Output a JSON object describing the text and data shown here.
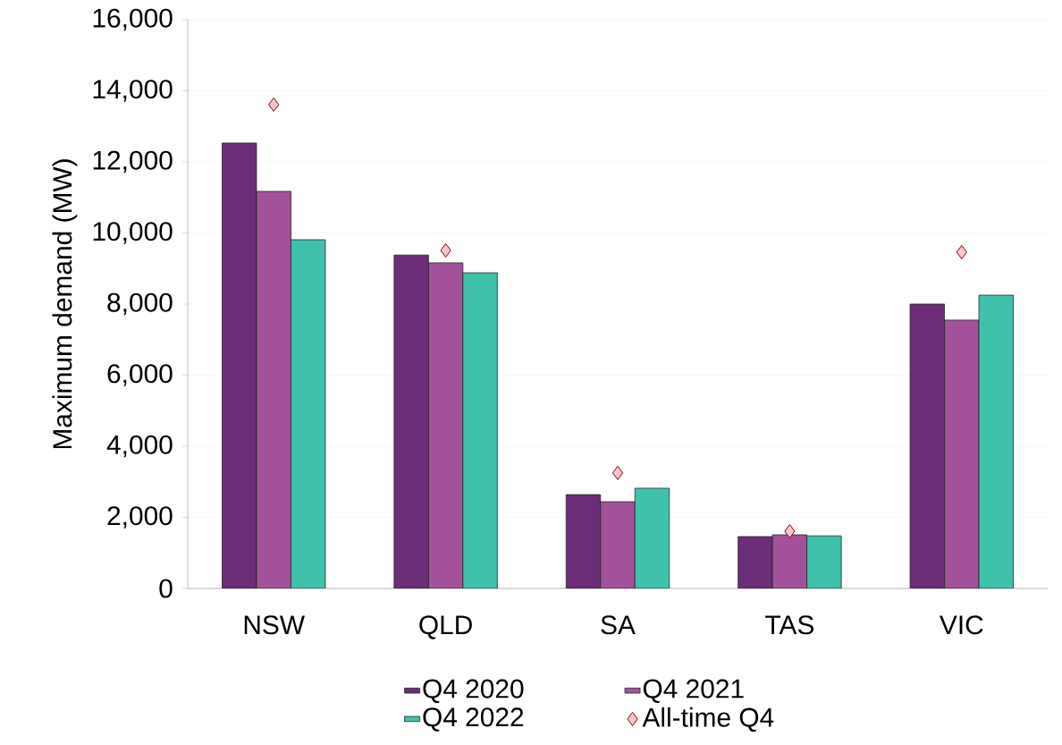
{
  "chart_data": {
    "type": "bar",
    "ylabel": "Maximum demand (MW)",
    "categories": [
      "NSW",
      "QLD",
      "SA",
      "TAS",
      "VIC"
    ],
    "series": [
      {
        "name": "Q4 2020",
        "color": "#6b2d77",
        "values": [
          12530,
          9380,
          2640,
          1460,
          8000
        ]
      },
      {
        "name": "Q4 2021",
        "color": "#a3519b",
        "values": [
          11170,
          9160,
          2440,
          1510,
          7550
        ]
      },
      {
        "name": "Q4 2022",
        "color": "#40c1ac",
        "values": [
          9810,
          8880,
          2820,
          1480,
          8250
        ]
      },
      {
        "name": "All-time Q4",
        "type": "scatter",
        "marker": "diamond",
        "color": "#f7c5d3",
        "values": [
          13610,
          9510,
          3250,
          1610,
          9460
        ]
      }
    ],
    "ylim": [
      0,
      16000
    ],
    "yticks": [
      0,
      {
        "value": 2000,
        "label": "2,000"
      },
      {
        "value": 4000,
        "label": "4,000"
      },
      {
        "value": 6000,
        "label": "6,000"
      },
      {
        "value": 8000,
        "label": "8,000"
      },
      {
        "value": 10000,
        "label": "10,000"
      },
      {
        "value": 12000,
        "label": "12,000"
      },
      {
        "value": 14000,
        "label": "14,000"
      },
      {
        "value": 16000,
        "label": "16,000"
      }
    ],
    "grid": "y",
    "legend": "bottom"
  }
}
